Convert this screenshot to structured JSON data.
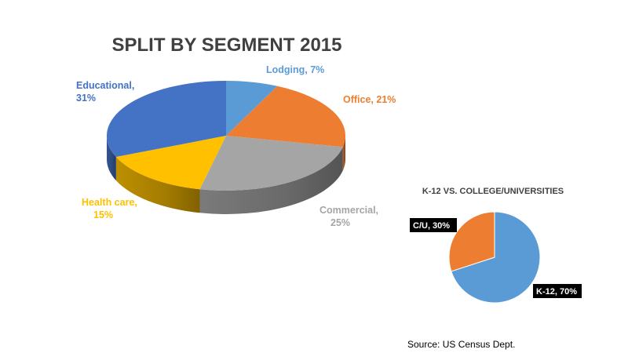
{
  "chart_data": [
    {
      "type": "pie",
      "style": "3d",
      "title": "SPLIT BY SEGMENT 2015",
      "slices": [
        {
          "label": "Lodging",
          "value": 7,
          "display": "Lodging, 7%",
          "color": "#5b9bd5"
        },
        {
          "label": "Office",
          "value": 21,
          "display": "Office, 21%",
          "color": "#ed7d31"
        },
        {
          "label": "Commercial",
          "value": 25,
          "display_lines": [
            "Commercial,",
            "25%"
          ],
          "color": "#a5a5a5"
        },
        {
          "label": "Health care",
          "value": 15,
          "display_lines": [
            "Health care,",
            "15%"
          ],
          "color": "#ffc000"
        },
        {
          "label": "Educational",
          "value": 31,
          "display_lines": [
            "Educational,",
            "31%"
          ],
          "color": "#4472c4"
        }
      ]
    },
    {
      "type": "pie",
      "title": "K-12 VS. COLLEGE/UNIVERSITIES",
      "slices": [
        {
          "label": "K-12",
          "value": 70,
          "display": "K-12, 70%",
          "color": "#5b9bd5"
        },
        {
          "label": "C/U",
          "value": 30,
          "display": "C/U, 30%",
          "color": "#ed7d31"
        }
      ]
    }
  ],
  "source": "Source: US Census Dept."
}
